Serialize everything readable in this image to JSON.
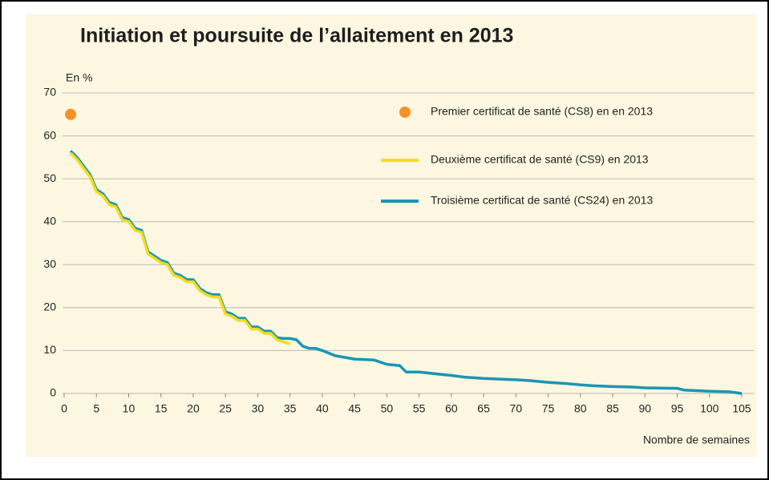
{
  "chart_data": {
    "type": "line",
    "title": "Initiation et poursuite de l’allaitement en 2013",
    "ylabel": "En %",
    "xlabel": "Nombre de semaines",
    "xlim": [
      0,
      105
    ],
    "ylim": [
      0,
      70
    ],
    "xticks": [
      0,
      5,
      10,
      15,
      20,
      25,
      30,
      35,
      40,
      45,
      50,
      55,
      60,
      65,
      70,
      75,
      80,
      85,
      90,
      95,
      100,
      105
    ],
    "yticks": [
      0,
      10,
      20,
      30,
      40,
      50,
      60,
      70
    ],
    "grid": true,
    "series": [
      {
        "name": "Premier certificat de santé (CS8) en en 2013",
        "type": "scatter",
        "color": "#f39323",
        "x": [
          1
        ],
        "values": [
          65
        ]
      },
      {
        "name": "Deuxième certificat de santé (CS9) en 2013",
        "type": "line",
        "color": "#f5dc1a",
        "x": [
          1,
          2,
          3,
          4,
          5,
          6,
          7,
          8,
          9,
          10,
          11,
          12,
          13,
          14,
          15,
          16,
          17,
          18,
          19,
          20,
          21,
          22,
          23,
          24,
          25,
          26,
          27,
          28,
          29,
          30,
          31,
          32,
          33,
          34,
          35
        ],
        "values": [
          56,
          54.5,
          52.5,
          50.5,
          47,
          46,
          44,
          43.5,
          40.5,
          40,
          38,
          37.5,
          32.5,
          31.5,
          30.5,
          30,
          27.5,
          27,
          26,
          26,
          24,
          23,
          22.5,
          22.5,
          18.5,
          18,
          17,
          17,
          15,
          15,
          14,
          14,
          12.5,
          12,
          11.5
        ]
      },
      {
        "name": "Troisième certificat de santé (CS24) en 2013",
        "type": "line",
        "color": "#1b95b5",
        "x": [
          1,
          2,
          3,
          4,
          5,
          6,
          7,
          8,
          9,
          10,
          11,
          12,
          13,
          14,
          15,
          16,
          17,
          18,
          19,
          20,
          21,
          22,
          23,
          24,
          25,
          26,
          27,
          28,
          29,
          30,
          31,
          32,
          33,
          34,
          35,
          36,
          37,
          38,
          39,
          40,
          42,
          45,
          48,
          50,
          52,
          53,
          55,
          58,
          60,
          62,
          65,
          70,
          72,
          75,
          78,
          80,
          82,
          85,
          88,
          90,
          95,
          96,
          100,
          103,
          105
        ],
        "values": [
          56.5,
          55,
          53,
          51,
          47.5,
          46.5,
          44.5,
          44,
          41,
          40.5,
          38.5,
          38,
          33,
          32,
          31,
          30.5,
          28,
          27.5,
          26.5,
          26.5,
          24.5,
          23.5,
          23,
          23,
          19,
          18.5,
          17.5,
          17.5,
          15.5,
          15.5,
          14.5,
          14.5,
          13,
          12.8,
          12.8,
          12.5,
          11,
          10.5,
          10.5,
          10,
          8.8,
          8,
          7.8,
          6.8,
          6.5,
          5,
          5,
          4.5,
          4.2,
          3.8,
          3.5,
          3.2,
          3,
          2.6,
          2.3,
          2,
          1.8,
          1.6,
          1.5,
          1.3,
          1.2,
          0.8,
          0.5,
          0.4,
          0
        ]
      }
    ],
    "legend": "upper right"
  }
}
